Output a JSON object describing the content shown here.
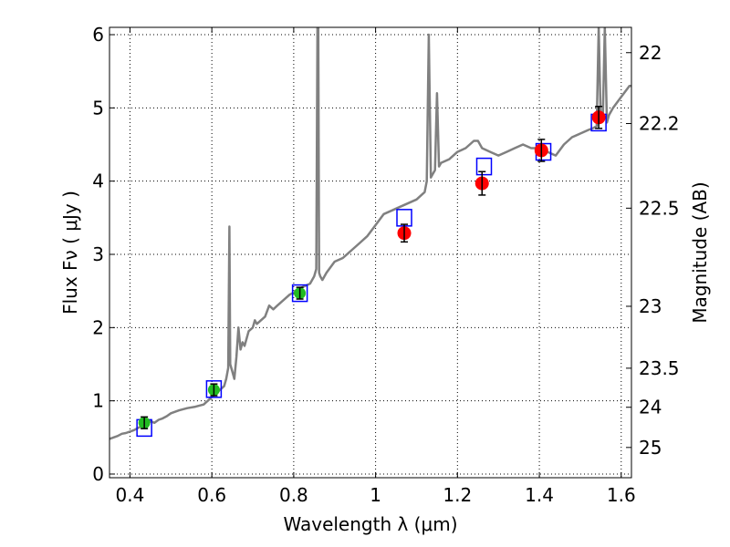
{
  "chart_data": {
    "type": "line",
    "title": "",
    "xlabel": "Wavelength  λ (μm)",
    "ylabel": "Flux  Fν  ( μJy )",
    "y2label": "Magnitude (AB)",
    "xlim": [
      0.35,
      1.625
    ],
    "ylim": [
      -0.05,
      6.1
    ],
    "grid": true,
    "x_ticks": [
      0.4,
      0.6,
      0.8,
      1.0,
      1.2,
      1.4,
      1.6
    ],
    "x_tick_labels": [
      "0.4",
      "0.6",
      "0.8",
      "1",
      "1.2",
      "1.4",
      "1.6"
    ],
    "y_ticks": [
      0,
      1,
      2,
      3,
      4,
      5,
      6
    ],
    "y_tick_labels": [
      "0",
      "1",
      "2",
      "3",
      "4",
      "5",
      "6"
    ],
    "mag_ticks": [
      22,
      22.2,
      22.5,
      23,
      23.5,
      24,
      25
    ],
    "mag_tick_labels": [
      "22",
      "22.2",
      "22.5",
      "23",
      "23.5",
      "24",
      "25"
    ],
    "colors": {
      "spectrum": "#808080",
      "model_box": "#0000ff",
      "optical_point": "#22bb22",
      "nir_point": "#ff0000",
      "errorbar": "#000000"
    },
    "series": [
      {
        "name": "model spectrum",
        "kind": "line",
        "x": [
          0.35,
          0.36,
          0.37,
          0.38,
          0.39,
          0.4,
          0.41,
          0.42,
          0.43,
          0.44,
          0.45,
          0.46,
          0.47,
          0.48,
          0.49,
          0.5,
          0.52,
          0.54,
          0.56,
          0.58,
          0.6,
          0.61,
          0.62,
          0.63,
          0.635,
          0.64,
          0.643,
          0.645,
          0.65,
          0.655,
          0.66,
          0.665,
          0.67,
          0.675,
          0.68,
          0.69,
          0.7,
          0.705,
          0.71,
          0.72,
          0.73,
          0.74,
          0.75,
          0.76,
          0.77,
          0.78,
          0.79,
          0.8,
          0.82,
          0.84,
          0.85,
          0.855,
          0.858,
          0.86,
          0.862,
          0.865,
          0.87,
          0.88,
          0.9,
          0.92,
          0.94,
          0.96,
          0.98,
          1.0,
          1.02,
          1.04,
          1.06,
          1.08,
          1.1,
          1.12,
          1.125,
          1.13,
          1.135,
          1.14,
          1.145,
          1.15,
          1.155,
          1.16,
          1.18,
          1.2,
          1.22,
          1.24,
          1.25,
          1.26,
          1.28,
          1.3,
          1.32,
          1.34,
          1.36,
          1.38,
          1.4,
          1.42,
          1.44,
          1.46,
          1.48,
          1.5,
          1.52,
          1.53,
          1.54,
          1.545,
          1.55,
          1.555,
          1.56,
          1.565,
          1.57,
          1.58,
          1.6,
          1.62,
          1.625
        ],
        "y": [
          0.48,
          0.5,
          0.52,
          0.55,
          0.56,
          0.58,
          0.6,
          0.63,
          0.66,
          0.68,
          0.72,
          0.7,
          0.74,
          0.76,
          0.79,
          0.83,
          0.87,
          0.9,
          0.92,
          0.95,
          1.05,
          1.1,
          1.15,
          1.2,
          1.3,
          1.45,
          3.38,
          1.5,
          1.4,
          1.3,
          1.6,
          2.0,
          1.7,
          1.8,
          1.75,
          1.95,
          2.0,
          2.1,
          2.05,
          2.1,
          2.15,
          2.3,
          2.25,
          2.3,
          2.35,
          2.4,
          2.45,
          2.48,
          2.55,
          2.6,
          2.7,
          2.8,
          6.1,
          6.1,
          2.75,
          2.7,
          2.65,
          2.75,
          2.9,
          2.95,
          3.05,
          3.15,
          3.25,
          3.4,
          3.55,
          3.6,
          3.65,
          3.7,
          3.75,
          3.85,
          4.0,
          6.0,
          4.05,
          4.1,
          4.15,
          5.2,
          4.2,
          4.25,
          4.3,
          4.4,
          4.45,
          4.55,
          4.55,
          4.45,
          4.4,
          4.35,
          4.4,
          4.45,
          4.5,
          4.45,
          4.45,
          4.4,
          4.35,
          4.5,
          4.6,
          4.65,
          4.7,
          4.72,
          4.75,
          6.1,
          4.8,
          4.85,
          6.1,
          4.8,
          4.9,
          5.0,
          5.15,
          5.3,
          5.3
        ]
      },
      {
        "name": "model photometry",
        "kind": "box",
        "x": [
          0.435,
          0.605,
          0.815,
          1.07,
          1.265,
          1.41,
          1.545
        ],
        "y": [
          0.63,
          1.16,
          2.47,
          3.5,
          4.2,
          4.4,
          4.8
        ]
      },
      {
        "name": "optical photometry",
        "kind": "errorbar",
        "x": [
          0.435,
          0.605,
          0.815
        ],
        "y": [
          0.7,
          1.15,
          2.47
        ],
        "yerr": [
          0.08,
          0.08,
          0.08
        ]
      },
      {
        "name": "near-IR photometry",
        "kind": "errorbar",
        "x": [
          1.07,
          1.26,
          1.405,
          1.545
        ],
        "y": [
          3.29,
          3.97,
          4.42,
          4.87
        ],
        "yerr": [
          0.12,
          0.16,
          0.15,
          0.15
        ]
      }
    ]
  }
}
